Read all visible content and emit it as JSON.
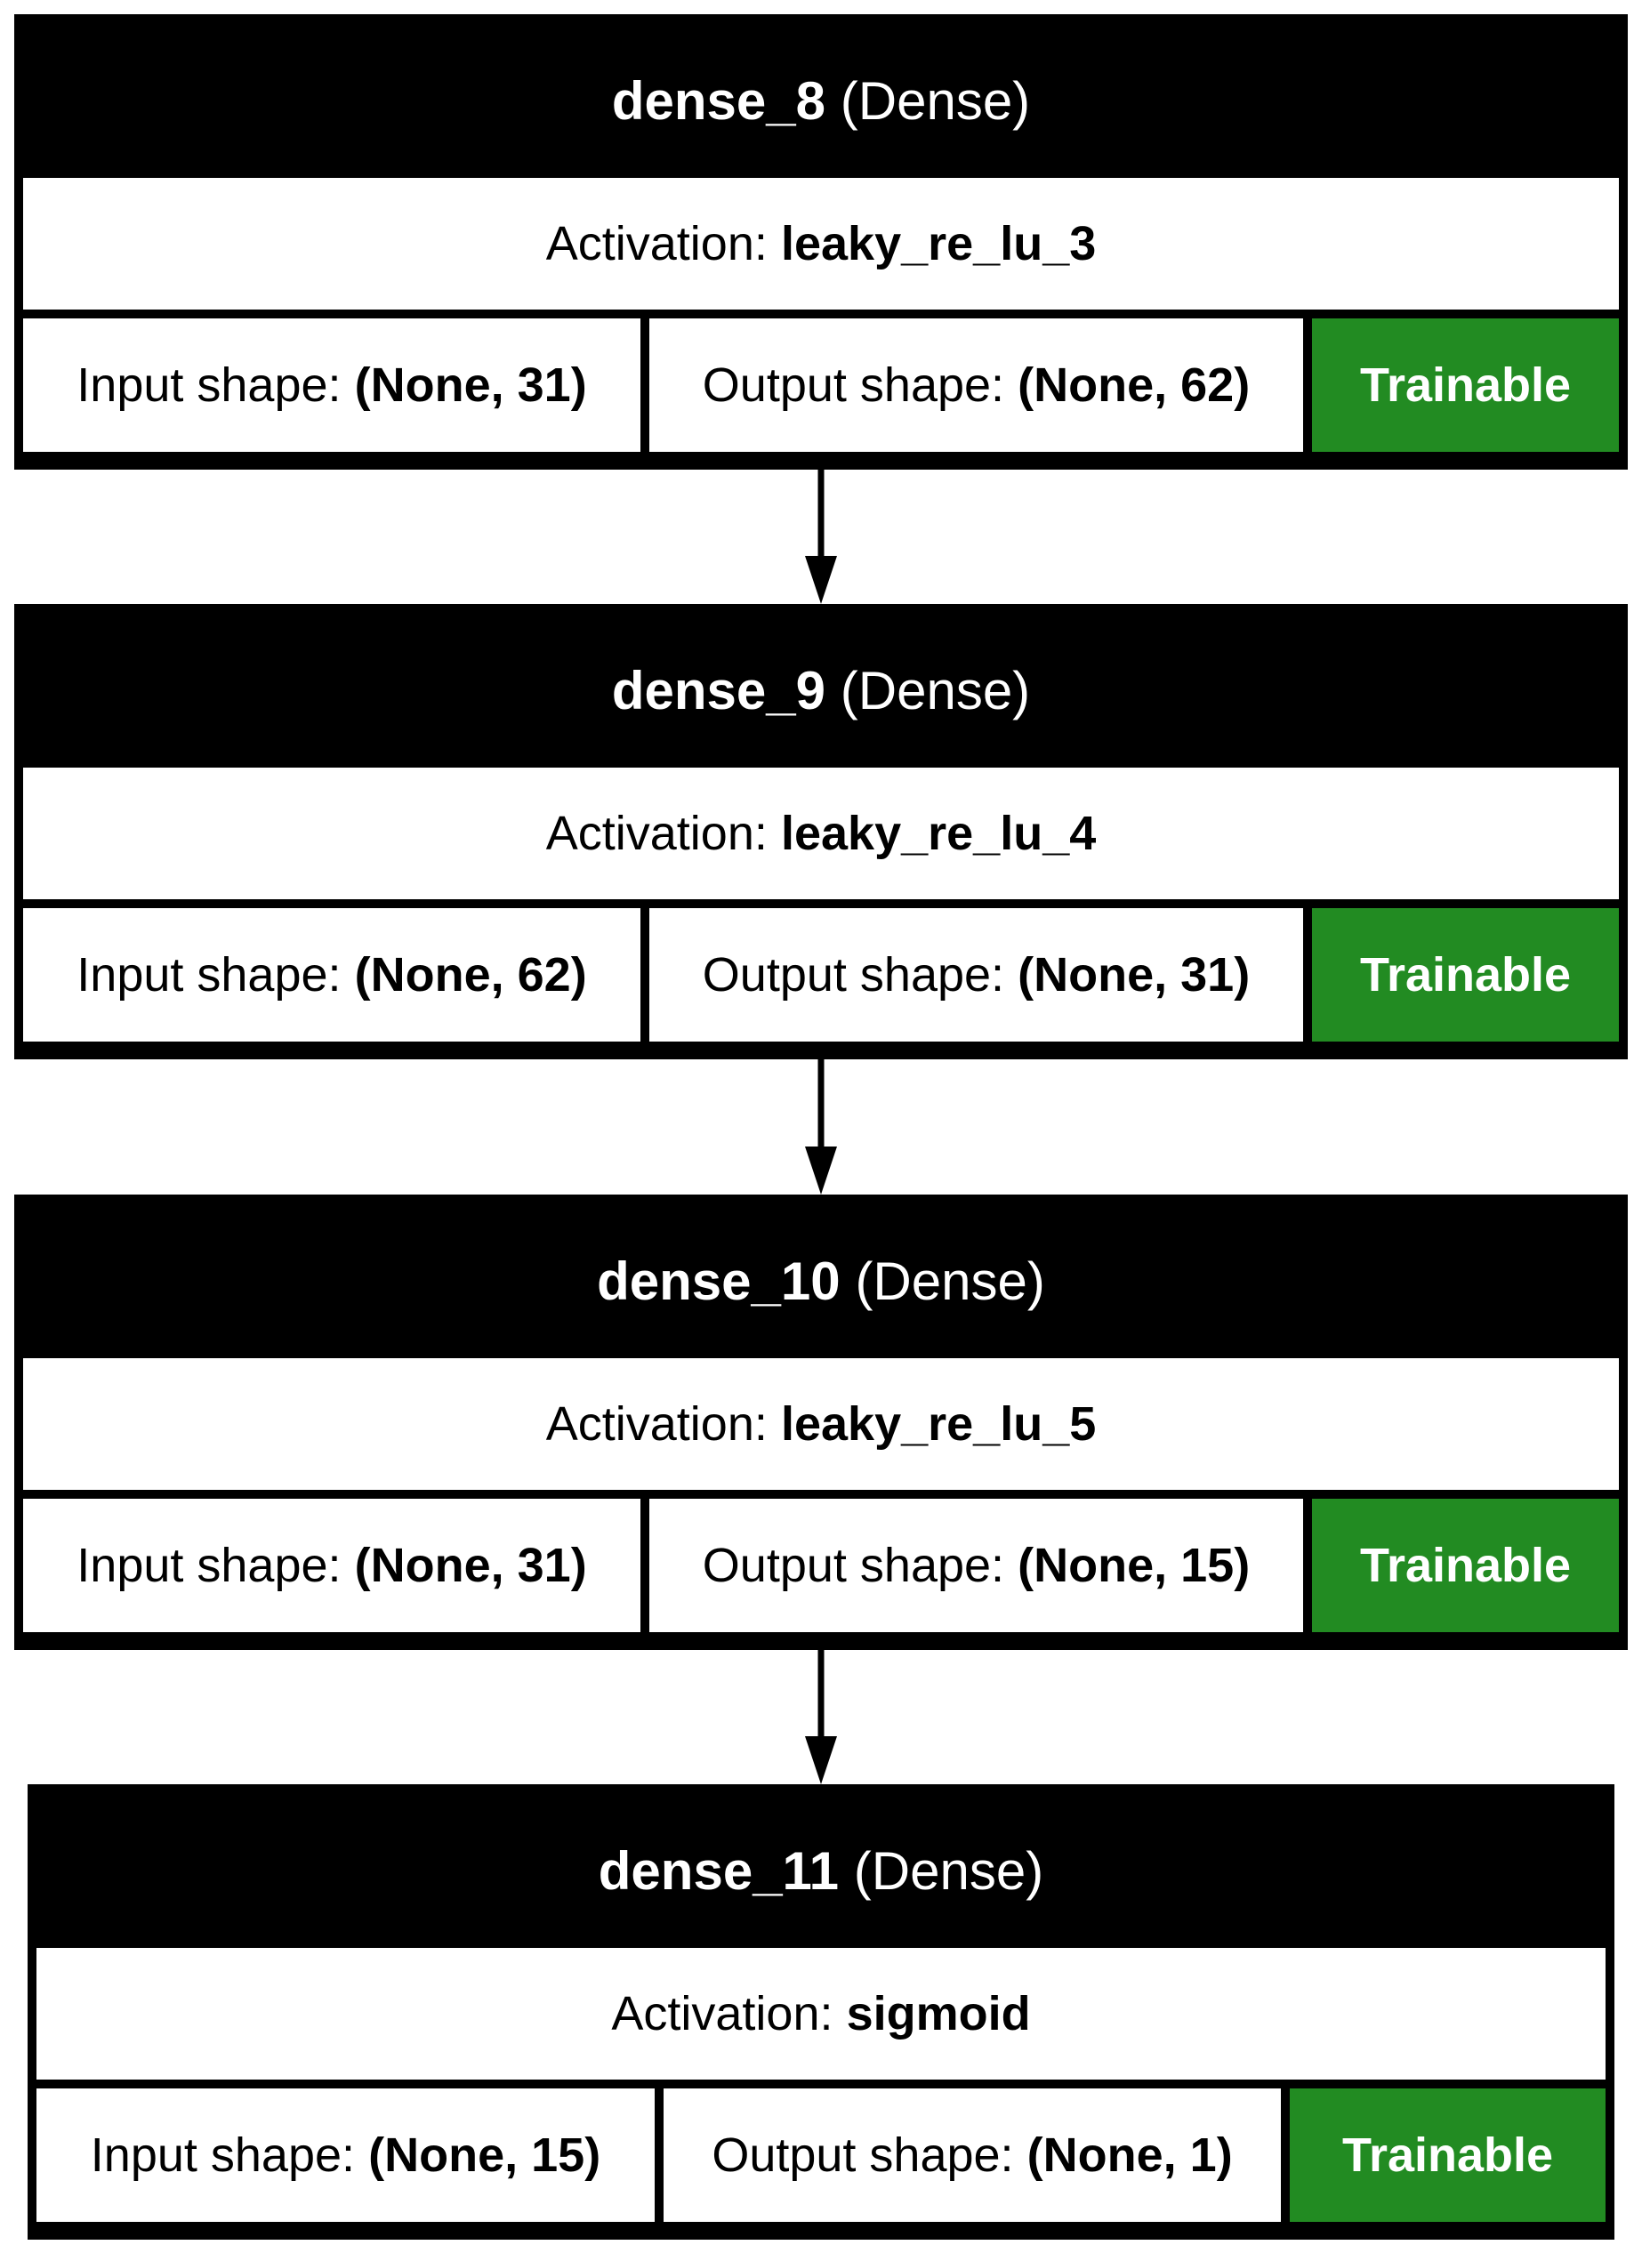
{
  "layers": [
    {
      "name": "dense_8",
      "type": "(Dense)",
      "activation_label": "Activation:",
      "activation": "leaky_re_lu_3",
      "input_label": "Input shape:",
      "input_shape": "(None, 31)",
      "output_label": "Output shape:",
      "output_shape": "(None, 62)",
      "trainable": "Trainable"
    },
    {
      "name": "dense_9",
      "type": "(Dense)",
      "activation_label": "Activation:",
      "activation": "leaky_re_lu_4",
      "input_label": "Input shape:",
      "input_shape": "(None, 62)",
      "output_label": "Output shape:",
      "output_shape": "(None, 31)",
      "trainable": "Trainable"
    },
    {
      "name": "dense_10",
      "type": "(Dense)",
      "activation_label": "Activation:",
      "activation": "leaky_re_lu_5",
      "input_label": "Input shape:",
      "input_shape": "(None, 31)",
      "output_label": "Output shape:",
      "output_shape": "(None, 15)",
      "trainable": "Trainable"
    },
    {
      "name": "dense_11",
      "type": "(Dense)",
      "activation_label": "Activation:",
      "activation": "sigmoid",
      "input_label": "Input shape:",
      "input_shape": "(None, 15)",
      "output_label": "Output shape:",
      "output_shape": "(None, 1)",
      "trainable": "Trainable"
    }
  ],
  "colors": {
    "header": "#000000",
    "trainable": "#228b22"
  }
}
